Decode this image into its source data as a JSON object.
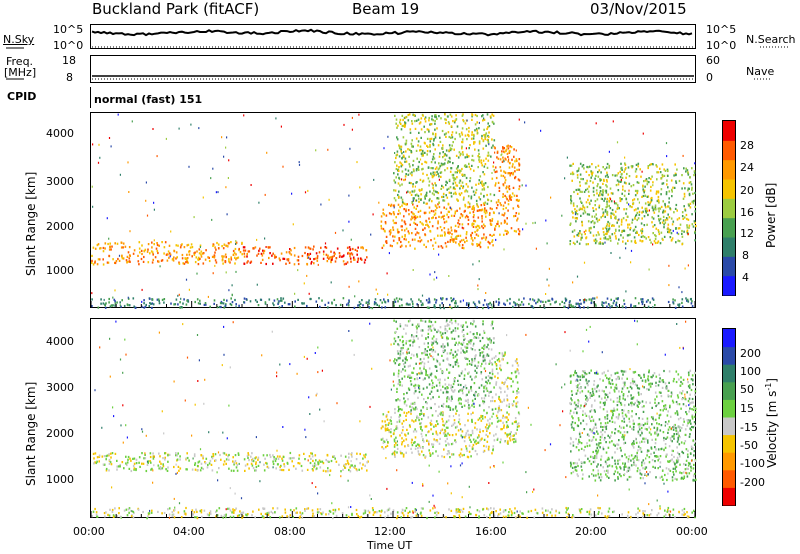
{
  "header": {
    "station": "Buckland Park (fitACF)",
    "beam": "Beam 19",
    "date": "03/Nov/2015"
  },
  "top_panel": {
    "left_label": "N.Sky",
    "left_ticks": [
      "10^5",
      "10^0"
    ],
    "right_ticks": [
      "10^5",
      "10^0"
    ],
    "right_label": "N.Search"
  },
  "freq_panel": {
    "left_label_1": "Freq.",
    "left_label_2": "[MHz]",
    "left_ticks": [
      "18",
      "8"
    ],
    "right_ticks": [
      "60",
      "0"
    ],
    "right_label": "Nave"
  },
  "cpid": {
    "label": "CPID",
    "mode": "normal (fast) 151"
  },
  "power_panel": {
    "ylabel": "Slant Range [km]",
    "yticks": [
      "4000",
      "3000",
      "2000",
      "1000"
    ],
    "colorbar_label": "Power [dB]",
    "colorbar_ticks": [
      "28",
      "24",
      "20",
      "16",
      "12",
      "8",
      "4"
    ],
    "colors": [
      "#1a1aff",
      "#2a4aa8",
      "#2f7f6a",
      "#48a050",
      "#9ccc40",
      "#f5c400",
      "#ff9900",
      "#ff5a00",
      "#ee0000"
    ]
  },
  "velocity_panel": {
    "ylabel": "Slant Range [km]",
    "yticks": [
      "4000",
      "3000",
      "2000",
      "1000"
    ],
    "colorbar_label": "Velocity [m s",
    "colorbar_label_sup": "-1",
    "colorbar_label_end": "]",
    "colorbar_ticks": [
      "200",
      "100",
      "50",
      "15",
      "-15",
      "-50",
      "-100",
      "-200"
    ],
    "colors": [
      "#1a1aff",
      "#2a4aa8",
      "#2f7f6a",
      "#48a050",
      "#6cd040",
      "#c8c8c8",
      "#f5c400",
      "#ff9900",
      "#ff5a00",
      "#ee0000"
    ]
  },
  "xaxis": {
    "label": "Time UT",
    "ticks": [
      "00:00",
      "04:00",
      "08:00",
      "12:00",
      "16:00",
      "20:00",
      "00:00"
    ]
  },
  "chart_data": [
    {
      "type": "heatmap",
      "title": "Power [dB]",
      "xlabel": "Time UT",
      "ylabel": "Slant Range [km]",
      "xlim": [
        0,
        24
      ],
      "ylim": [
        180,
        4500
      ],
      "zlim": [
        0,
        30
      ],
      "bands": [
        {
          "t": [
            0,
            6
          ],
          "range": [
            1150,
            1650
          ],
          "value": 24
        },
        {
          "t": [
            6,
            11
          ],
          "range": [
            1150,
            1550
          ],
          "value": 26
        },
        {
          "t": [
            11.5,
            16
          ],
          "range": [
            1500,
            2500
          ],
          "value": 22
        },
        {
          "t": [
            12,
            16
          ],
          "range": [
            2500,
            4500
          ],
          "value": 16
        },
        {
          "t": [
            16,
            17
          ],
          "range": [
            1800,
            3800
          ],
          "value": 24
        },
        {
          "t": [
            19,
            24
          ],
          "range": [
            1600,
            3400
          ],
          "value": 14
        },
        {
          "t": [
            0,
            24
          ],
          "range": [
            180,
            400
          ],
          "value": 8
        }
      ]
    },
    {
      "type": "heatmap",
      "title": "Velocity [m s-1]",
      "xlabel": "Time UT",
      "ylabel": "Slant Range [km]",
      "xlim": [
        0,
        24
      ],
      "ylim": [
        180,
        4500
      ],
      "zlim": [
        -200,
        200
      ],
      "bands": [
        {
          "t": [
            0,
            11
          ],
          "range": [
            1200,
            1600
          ],
          "value": -10
        },
        {
          "t": [
            11.5,
            16
          ],
          "range": [
            1500,
            2500
          ],
          "value": -5
        },
        {
          "t": [
            12,
            16
          ],
          "range": [
            2500,
            4500
          ],
          "value": 20
        },
        {
          "t": [
            16,
            17
          ],
          "range": [
            1800,
            3800
          ],
          "value": -30
        },
        {
          "t": [
            19,
            24
          ],
          "range": [
            1000,
            3400
          ],
          "value": 10
        },
        {
          "t": [
            0,
            24
          ],
          "range": [
            180,
            400
          ],
          "value": -40
        }
      ]
    }
  ]
}
